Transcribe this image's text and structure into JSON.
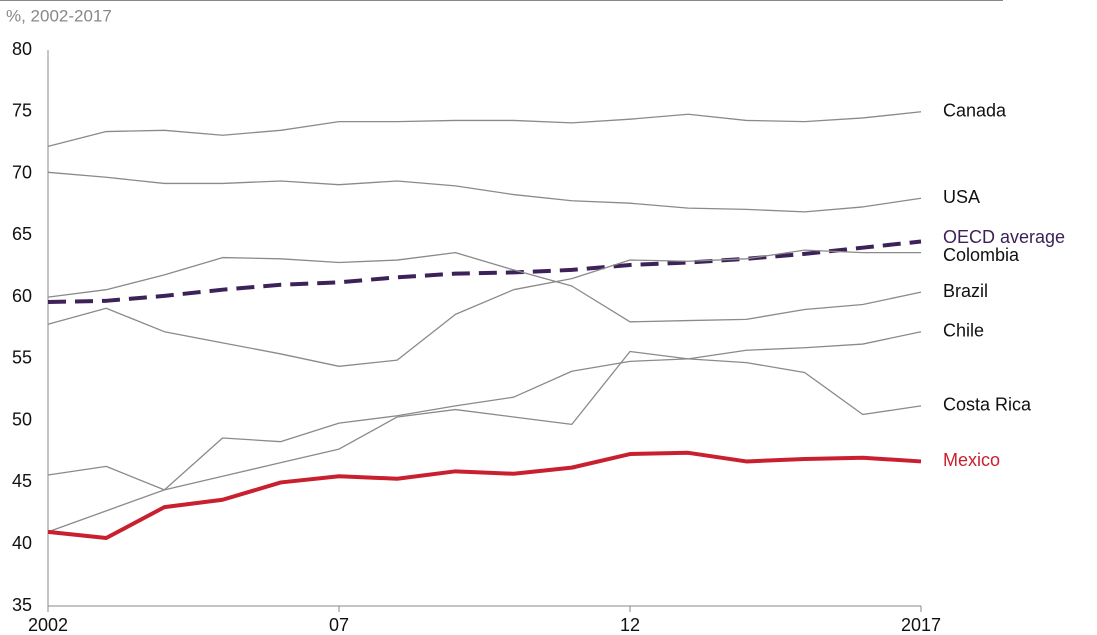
{
  "chart_data": {
    "type": "line",
    "subtitle": "%, 2002-2017",
    "x": [
      2002,
      2003,
      2004,
      2005,
      2006,
      2007,
      2008,
      2009,
      2010,
      2011,
      2012,
      2013,
      2014,
      2015,
      2016,
      2017
    ],
    "xlim": [
      2002,
      2017
    ],
    "xticks": [
      2002,
      {
        "value": 2007,
        "label": "07"
      },
      {
        "value": 2012,
        "label": "12"
      },
      2017
    ],
    "ylim": [
      35,
      80
    ],
    "yticks": [
      35,
      40,
      45,
      50,
      55,
      60,
      65,
      70,
      75,
      80
    ],
    "grid": false,
    "series": [
      {
        "name": "Canada",
        "color": "#8a8a8a",
        "values": [
          72.2,
          73.4,
          73.5,
          73.1,
          73.5,
          74.2,
          74.2,
          74.3,
          74.3,
          74.1,
          74.4,
          74.8,
          74.3,
          74.2,
          74.5,
          75.0
        ]
      },
      {
        "name": "USA",
        "color": "#8a8a8a",
        "values": [
          70.1,
          69.7,
          69.2,
          69.2,
          69.4,
          69.1,
          69.4,
          69.0,
          68.3,
          67.8,
          67.6,
          67.2,
          67.1,
          66.9,
          67.3,
          68.0
        ]
      },
      {
        "name": "OECD average",
        "color": "#3d2259",
        "dashed": true,
        "values": [
          59.6,
          59.7,
          60.1,
          60.6,
          61.0,
          61.2,
          61.6,
          61.9,
          62.0,
          62.2,
          62.6,
          62.8,
          63.1,
          63.5,
          64.0,
          64.5
        ]
      },
      {
        "name": "Colombia",
        "color": "#8a8a8a",
        "values": [
          57.8,
          59.1,
          57.2,
          56.3,
          55.4,
          54.4,
          54.9,
          58.6,
          60.6,
          61.5,
          63.0,
          62.9,
          63.1,
          63.8,
          63.6,
          63.6
        ]
      },
      {
        "name": "Brazil",
        "color": "#8a8a8a",
        "values": [
          60.0,
          60.6,
          61.8,
          63.2,
          63.1,
          62.8,
          63.0,
          63.6,
          62.2,
          60.9,
          58.0,
          58.1,
          58.2,
          59.0,
          59.4,
          60.4
        ]
      },
      {
        "name": "Chile",
        "color": "#8a8a8a",
        "values": [
          45.6,
          46.3,
          44.4,
          48.6,
          48.3,
          49.8,
          50.4,
          51.2,
          51.9,
          54.0,
          54.8,
          55.0,
          55.7,
          55.9,
          56.2,
          57.2
        ]
      },
      {
        "name": "Costa Rica",
        "color": "#8a8a8a",
        "values": [
          41.0,
          42.7,
          44.4,
          45.5,
          46.6,
          47.7,
          50.3,
          50.9,
          50.3,
          49.7,
          55.6,
          55.0,
          54.7,
          53.9,
          50.5,
          51.2
        ]
      },
      {
        "name": "Mexico",
        "color": "#c9202f",
        "bold": true,
        "values": [
          41.0,
          40.5,
          43.0,
          43.6,
          45.0,
          45.5,
          45.3,
          45.9,
          45.7,
          46.2,
          47.3,
          47.4,
          46.7,
          46.9,
          47.0,
          46.7
        ]
      }
    ]
  }
}
